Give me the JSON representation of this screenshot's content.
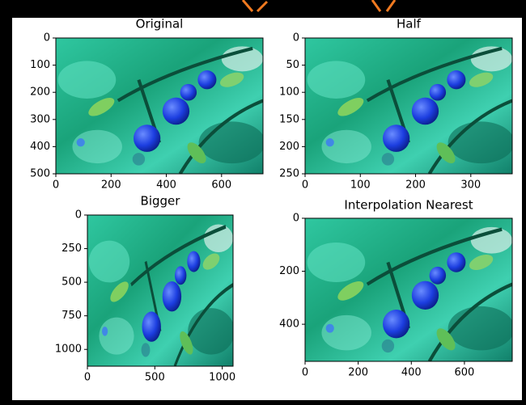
{
  "chart_data": [
    {
      "type": "image",
      "title": "Original",
      "xlim": [
        0,
        750
      ],
      "ylim": [
        500,
        0
      ],
      "xticks": [
        0,
        200,
        400,
        600
      ],
      "yticks": [
        0,
        100,
        200,
        300,
        400,
        500
      ]
    },
    {
      "type": "image",
      "title": "Half",
      "xlim": [
        0,
        375
      ],
      "ylim": [
        250,
        0
      ],
      "xticks": [
        0,
        100,
        200,
        300
      ],
      "yticks": [
        0,
        50,
        100,
        150,
        200,
        250
      ]
    },
    {
      "type": "image",
      "title": "Bigger",
      "xlim": [
        0,
        1080
      ],
      "ylim": [
        1125,
        0
      ],
      "xticks": [
        0,
        500,
        1000
      ],
      "yticks": [
        0,
        250,
        500,
        750,
        1000
      ]
    },
    {
      "type": "image",
      "title": "Interpolation Nearest",
      "xlim": [
        0,
        780
      ],
      "ylim": [
        540,
        0
      ],
      "xticks": [
        0,
        200,
        400,
        600
      ],
      "yticks": [
        0,
        200,
        400
      ]
    }
  ]
}
